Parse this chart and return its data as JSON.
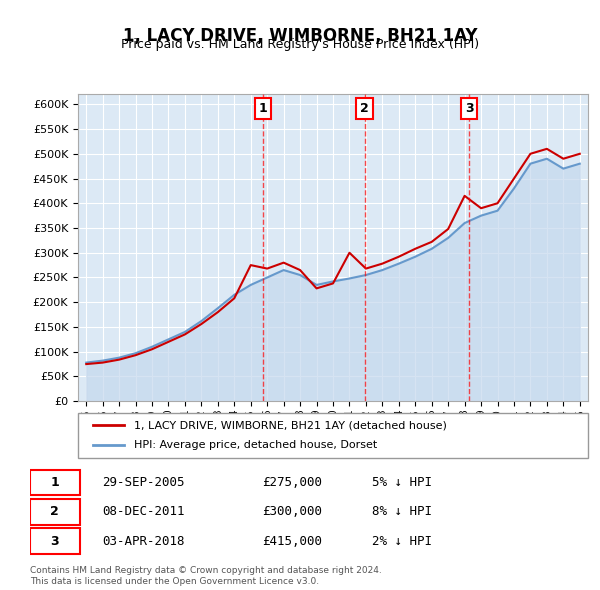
{
  "title": "1, LACY DRIVE, WIMBORNE, BH21 1AY",
  "subtitle": "Price paid vs. HM Land Registry's House Price Index (HPI)",
  "legend_label_red": "1, LACY DRIVE, WIMBORNE, BH21 1AY (detached house)",
  "legend_label_blue": "HPI: Average price, detached house, Dorset",
  "footnote": "Contains HM Land Registry data © Crown copyright and database right 2024.\nThis data is licensed under the Open Government Licence v3.0.",
  "transactions": [
    {
      "num": 1,
      "date": "29-SEP-2005",
      "price": 275000,
      "pct": "5%",
      "dir": "↓",
      "year": 2005.75
    },
    {
      "num": 2,
      "date": "08-DEC-2011",
      "price": 300000,
      "pct": "8%",
      "dir": "↓",
      "year": 2011.92
    },
    {
      "num": 3,
      "date": "03-APR-2018",
      "price": 415000,
      "pct": "2%",
      "dir": "↓",
      "year": 2018.27
    }
  ],
  "hpi_years": [
    1995,
    1996,
    1997,
    1998,
    1999,
    2000,
    2001,
    2002,
    2003,
    2004,
    2005,
    2006,
    2007,
    2008,
    2009,
    2010,
    2011,
    2012,
    2013,
    2014,
    2015,
    2016,
    2017,
    2018,
    2019,
    2020,
    2021,
    2022,
    2023,
    2024,
    2025
  ],
  "hpi_values": [
    78000,
    82000,
    88000,
    97000,
    110000,
    125000,
    140000,
    162000,
    188000,
    215000,
    235000,
    250000,
    265000,
    255000,
    235000,
    242000,
    248000,
    255000,
    265000,
    278000,
    292000,
    308000,
    330000,
    360000,
    375000,
    385000,
    430000,
    480000,
    490000,
    470000,
    480000
  ],
  "red_years": [
    1995,
    1996,
    1997,
    1998,
    1999,
    2000,
    2001,
    2002,
    2003,
    2004,
    2005,
    2006,
    2007,
    2008,
    2009,
    2010,
    2011,
    2012,
    2013,
    2014,
    2015,
    2016,
    2017,
    2018,
    2019,
    2020,
    2021,
    2022,
    2023,
    2024,
    2025
  ],
  "red_values": [
    75000,
    78000,
    84000,
    93000,
    105000,
    120000,
    135000,
    156000,
    180000,
    208000,
    275000,
    268000,
    280000,
    265000,
    228000,
    238000,
    300000,
    268000,
    278000,
    292000,
    308000,
    322000,
    348000,
    415000,
    390000,
    400000,
    450000,
    500000,
    510000,
    490000,
    500000
  ],
  "ylim": [
    0,
    620000
  ],
  "yticks": [
    0,
    50000,
    100000,
    150000,
    200000,
    250000,
    300000,
    350000,
    400000,
    450000,
    500000,
    550000,
    600000
  ],
  "background_color": "#ffffff",
  "plot_bg_color": "#dce9f5",
  "grid_color": "#ffffff",
  "red_color": "#cc0000",
  "blue_color": "#6699cc",
  "blue_fill": "#c5d8ed"
}
